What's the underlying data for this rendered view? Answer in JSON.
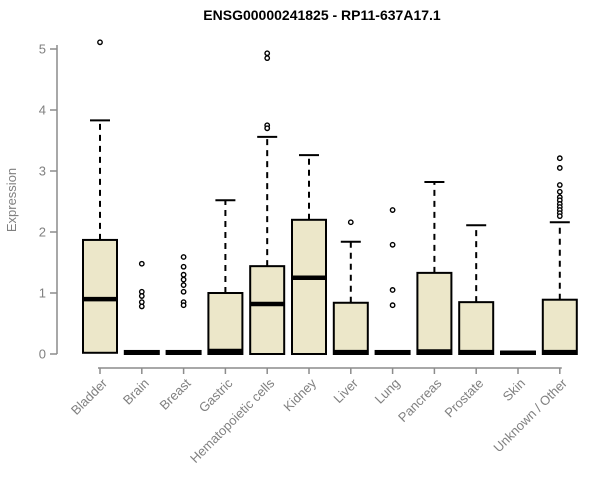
{
  "figure": {
    "title": "ENSG00000241825 - RP11-637A17.1"
  },
  "chart_data": {
    "type": "box",
    "title": "ENSG00000241825 - RP11-637A17.1",
    "xlabel": "",
    "ylabel": "Expression",
    "ylim": [
      0,
      5
    ],
    "yticks": [
      0,
      1,
      2,
      3,
      4,
      5
    ],
    "grid": false,
    "legend": null,
    "categories": [
      "Bladder",
      "Brain",
      "Breast",
      "Gastric",
      "Hematopoietic cells",
      "Kidney",
      "Liver",
      "Lung",
      "Pancreas",
      "Prostate",
      "Skin",
      "Unknown / Other"
    ],
    "boxes": [
      {
        "label": "Bladder",
        "q1": 0.02,
        "median": 0.9,
        "q3": 1.87,
        "whisker_low": 0.02,
        "whisker_high": 3.83,
        "outliers": [
          5.11
        ]
      },
      {
        "label": "Brain",
        "q1": 0,
        "median": 0.02,
        "q3": 0.05,
        "whisker_low": 0,
        "whisker_high": 0.05,
        "outliers": [
          1.48,
          1.02,
          0.95,
          0.85,
          0.78
        ]
      },
      {
        "label": "Breast",
        "q1": 0,
        "median": 0.02,
        "q3": 0.05,
        "whisker_low": 0,
        "whisker_high": 0.05,
        "outliers": [
          1.59,
          1.43,
          1.3,
          1.22,
          1.13,
          1.02,
          0.85,
          0.8
        ]
      },
      {
        "label": "Gastric",
        "q1": 0,
        "median": 0.05,
        "q3": 1.0,
        "whisker_low": 0,
        "whisker_high": 2.52,
        "outliers": []
      },
      {
        "label": "Hematopoietic cells",
        "q1": 0,
        "median": 0.82,
        "q3": 1.44,
        "whisker_low": 0,
        "whisker_high": 3.56,
        "outliers": [
          4.93,
          4.85,
          3.75,
          3.7
        ]
      },
      {
        "label": "Kidney",
        "q1": 0,
        "median": 1.25,
        "q3": 2.2,
        "whisker_low": 0,
        "whisker_high": 3.26,
        "outliers": []
      },
      {
        "label": "Liver",
        "q1": 0,
        "median": 0.03,
        "q3": 0.84,
        "whisker_low": 0,
        "whisker_high": 1.84,
        "outliers": [
          2.16
        ]
      },
      {
        "label": "Lung",
        "q1": 0,
        "median": 0.02,
        "q3": 0.05,
        "whisker_low": 0,
        "whisker_high": 0.05,
        "outliers": [
          2.36,
          1.79,
          1.05,
          0.8
        ]
      },
      {
        "label": "Pancreas",
        "q1": 0,
        "median": 0.04,
        "q3": 1.33,
        "whisker_low": 0,
        "whisker_high": 2.82,
        "outliers": []
      },
      {
        "label": "Prostate",
        "q1": 0,
        "median": 0.03,
        "q3": 0.85,
        "whisker_low": 0,
        "whisker_high": 2.11,
        "outliers": []
      },
      {
        "label": "Skin",
        "q1": 0,
        "median": 0.02,
        "q3": 0.04,
        "whisker_low": 0,
        "whisker_high": 0.04,
        "outliers": []
      },
      {
        "label": "Unknown / Other",
        "q1": 0,
        "median": 0.03,
        "q3": 0.89,
        "whisker_low": 0,
        "whisker_high": 2.16,
        "outliers": [
          3.21,
          3.05,
          2.77,
          2.66,
          2.57,
          2.52,
          2.46,
          2.41,
          2.36,
          2.31,
          2.26
        ]
      }
    ]
  },
  "colors": {
    "box_fill": "#ECE7C9",
    "box_border": "#000000",
    "median": "#000000",
    "whisker": "#000000",
    "outlier_stroke": "#000000",
    "outlier_fill": "#FFFFFF",
    "axis": "#8C8C8C",
    "tick_label": "#808080",
    "title": "#000000"
  }
}
